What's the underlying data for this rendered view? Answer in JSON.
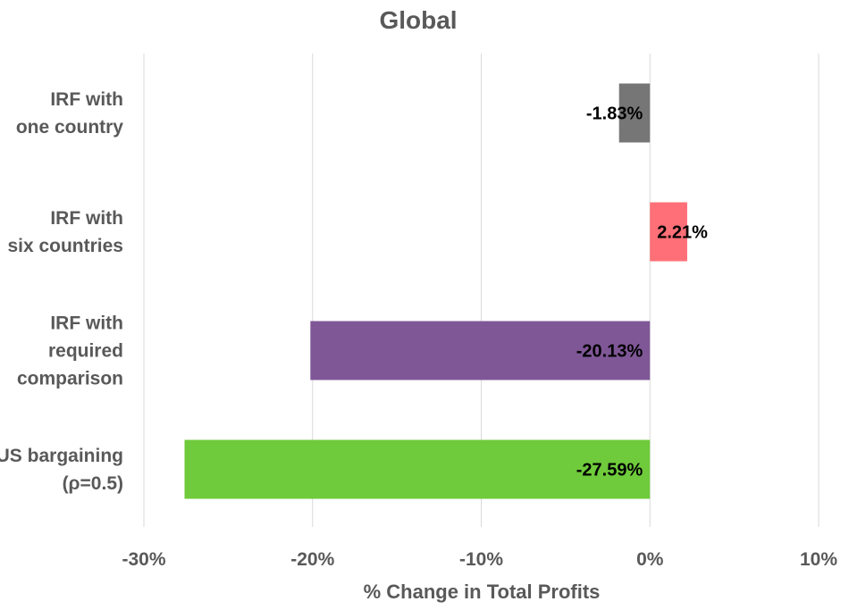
{
  "chart_data": {
    "type": "bar",
    "orientation": "horizontal",
    "title": "Global",
    "xlabel": "% Change in Total Profits",
    "ylabel": "",
    "xlim": [
      -30,
      10
    ],
    "ticks": [
      -30,
      -20,
      -10,
      0,
      10
    ],
    "tick_labels": [
      "-30%",
      "-20%",
      "-10%",
      "0%",
      "10%"
    ],
    "grid": true,
    "categories": [
      {
        "lines": [
          "IRF with",
          "one country"
        ]
      },
      {
        "lines": [
          "IRF with",
          "six countries"
        ]
      },
      {
        "lines": [
          "IRF with",
          "required",
          "comparison"
        ]
      },
      {
        "lines": [
          "US bargaining",
          "(ρ=0.5)"
        ]
      }
    ],
    "values": [
      -1.83,
      2.21,
      -20.13,
      -27.59
    ],
    "value_labels": [
      "-1.83%",
      "2.21%",
      "-20.13%",
      "-27.59%"
    ],
    "colors": [
      "#767676",
      "#ff6f77",
      "#7f5797",
      "#6fcb3b"
    ]
  }
}
